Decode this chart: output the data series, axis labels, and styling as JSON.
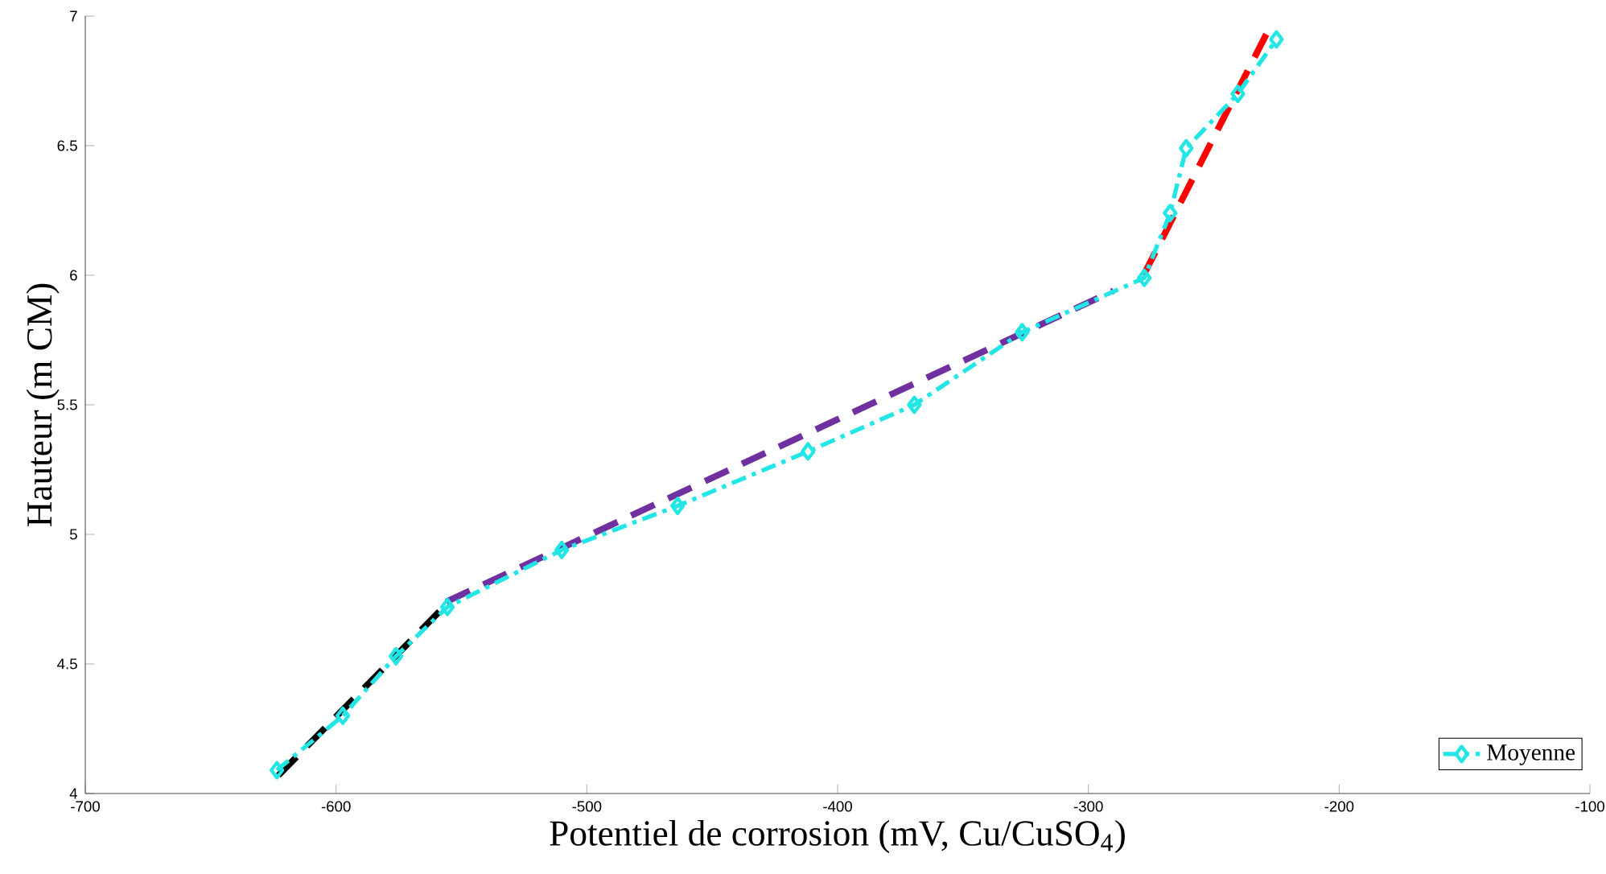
{
  "chart_data": {
    "type": "line",
    "xlabel": "Potentiel de corrosion (mV, Cu/CuSO$_{4}$)",
    "ylabel": "Hauteur (m CM)",
    "xlim": [
      -700,
      -100
    ],
    "xticks": [
      -700,
      -600,
      -500,
      -400,
      -300,
      -200,
      -100
    ],
    "ylim": [
      4,
      7
    ],
    "yticks": [
      4,
      4.5,
      5,
      5.5,
      6,
      6.5,
      7
    ],
    "legend": "bottom right",
    "grid": false,
    "series": [
      {
        "name": "Moyenne",
        "color": "#22e5e5",
        "marker": "diamond",
        "line_style": "dashdot",
        "x": [
          -623.6,
          -597.3,
          -576.1,
          -555.6,
          -510,
          -463.8,
          -411.8,
          -369.4,
          -326.4,
          -277.7,
          -267.4,
          -261,
          -240.4,
          -225
        ],
        "values": [
          4.09,
          4.3,
          4.53,
          4.72,
          4.94,
          5.11,
          5.32,
          5.5,
          5.78,
          5.99,
          6.24,
          6.49,
          6.7,
          6.91
        ]
      },
      {
        "type": "line",
        "color": "#000000",
        "marker": "none",
        "line_style": "dashed",
        "x": [
          -623,
          -556
        ],
        "values": [
          4.07,
          4.73
        ]
      },
      {
        "type": "line",
        "color": "#7030a0",
        "marker": "none",
        "line_style": "dashed",
        "x": [
          -556,
          -290
        ],
        "values": [
          4.74,
          5.94
        ]
      },
      {
        "type": "line",
        "color": "#ff0000",
        "marker": "none",
        "line_style": "dashed",
        "x": [
          -278,
          -228
        ],
        "values": [
          6.0,
          6.95
        ]
      }
    ]
  }
}
